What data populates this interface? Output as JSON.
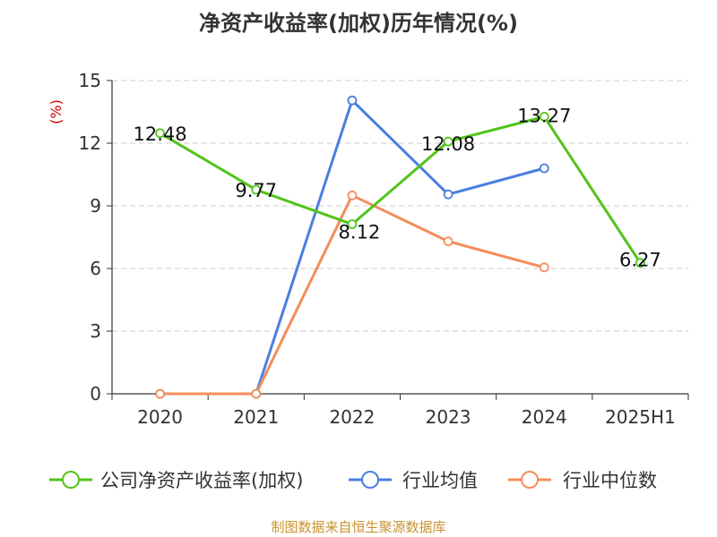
{
  "chart_data": {
    "type": "line",
    "title": "净资产收益率(加权)历年情况(%)",
    "ylabel": "(%)",
    "ylabel_color": "#cc0000",
    "categories": [
      "2020",
      "2021",
      "2022",
      "2023",
      "2024",
      "2025H1"
    ],
    "yticks": [
      "0",
      "3",
      "6",
      "9",
      "12",
      "15"
    ],
    "ylim": [
      0,
      15
    ],
    "grid": "horizontal dashed",
    "legend_position": "bottom",
    "series": [
      {
        "name": "公司净资产收益率(加权)",
        "color": "#52c41a",
        "values": [
          12.48,
          9.77,
          8.12,
          12.08,
          13.27,
          6.27
        ],
        "labels": [
          "12.48",
          "9.77",
          "8.12",
          "12.08",
          "13.27",
          "6.27"
        ]
      },
      {
        "name": "行业均值",
        "color": "#4a7fe0",
        "values": [
          0,
          0,
          14.05,
          9.55,
          10.8,
          null
        ]
      },
      {
        "name": "行业中位数",
        "color": "#f58c5a",
        "values": [
          0,
          0,
          9.5,
          7.3,
          6.05,
          null
        ]
      }
    ]
  },
  "source": {
    "text": "制图数据来自恒生聚源数据库",
    "color": "#c9922e"
  }
}
